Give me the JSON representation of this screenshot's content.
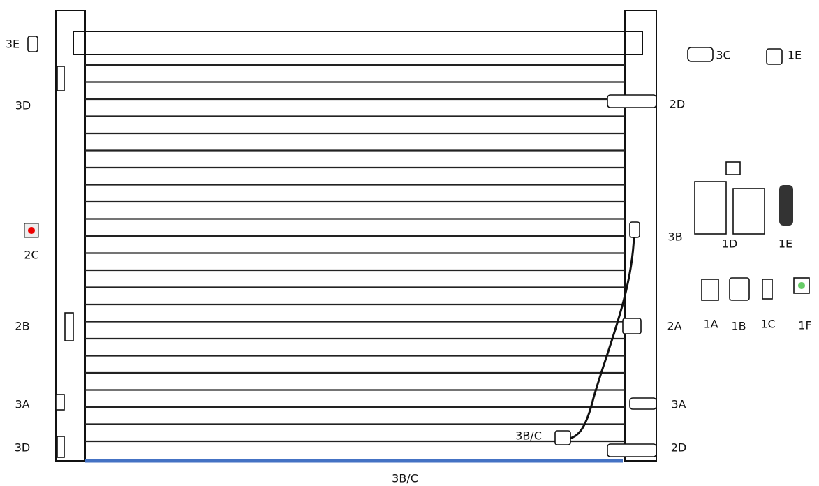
{
  "labels": [
    "3E",
    "3D",
    "2C",
    "2B",
    "3A",
    "3D",
    "3C",
    "1E",
    "2D",
    "3B",
    "1D",
    "1E",
    "1A",
    "1B",
    "1C",
    "1F",
    "2A",
    "3A",
    "3B/C",
    "2D",
    "3B/C"
  ]
}
